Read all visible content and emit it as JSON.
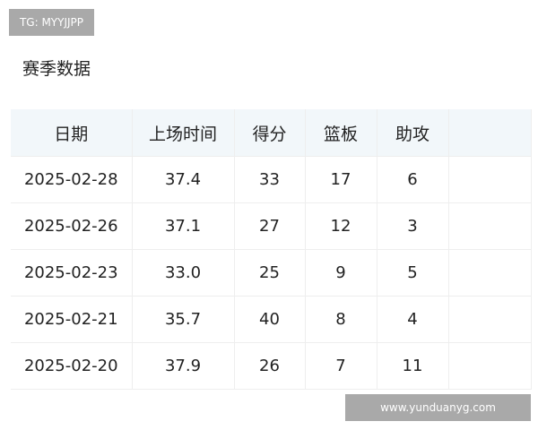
{
  "watermark_top": "TG: MYYJJPP",
  "watermark_bottom": "www.yunduanyg.com",
  "title": "赛季数据",
  "table": {
    "headers": [
      "日期",
      "上场时间",
      "得分",
      "篮板",
      "助攻"
    ],
    "rows": [
      [
        "2025-02-28",
        "37.4",
        "33",
        "17",
        "6"
      ],
      [
        "2025-02-26",
        "37.1",
        "27",
        "12",
        "3"
      ],
      [
        "2025-02-23",
        "33.0",
        "25",
        "9",
        "5"
      ],
      [
        "2025-02-21",
        "35.7",
        "40",
        "8",
        "4"
      ],
      [
        "2025-02-20",
        "37.9",
        "26",
        "7",
        "11"
      ]
    ]
  },
  "colors": {
    "header_bg": "#f2f7fa",
    "watermark_bg": "#a9a9a9"
  }
}
